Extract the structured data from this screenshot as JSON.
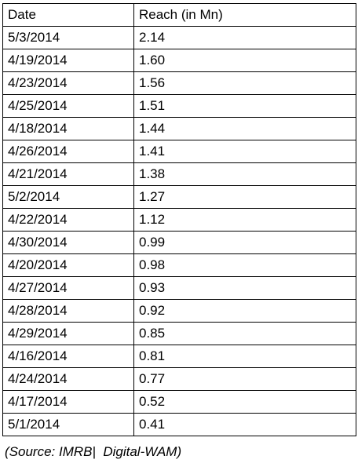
{
  "table": {
    "headers": {
      "date": "Date",
      "reach": "Reach (in Mn)"
    },
    "rows": [
      {
        "date": "5/3/2014",
        "reach": "2.14"
      },
      {
        "date": "4/19/2014",
        "reach": "1.60"
      },
      {
        "date": "4/23/2014",
        "reach": "1.56"
      },
      {
        "date": "4/25/2014",
        "reach": "1.51"
      },
      {
        "date": "4/18/2014",
        "reach": "1.44"
      },
      {
        "date": "4/26/2014",
        "reach": "1.41"
      },
      {
        "date": "4/21/2014",
        "reach": "1.38"
      },
      {
        "date": "5/2/2014",
        "reach": "1.27"
      },
      {
        "date": "4/22/2014",
        "reach": "1.12"
      },
      {
        "date": "4/30/2014",
        "reach": "0.99"
      },
      {
        "date": "4/20/2014",
        "reach": "0.98"
      },
      {
        "date": "4/27/2014",
        "reach": "0.93"
      },
      {
        "date": "4/28/2014",
        "reach": "0.92"
      },
      {
        "date": "4/29/2014",
        "reach": "0.85"
      },
      {
        "date": "4/16/2014",
        "reach": "0.81"
      },
      {
        "date": "4/24/2014",
        "reach": "0.77"
      },
      {
        "date": "4/17/2014",
        "reach": "0.52"
      },
      {
        "date": "5/1/2014",
        "reach": "0.41"
      }
    ]
  },
  "source_note": "(Source: IMRB|  Digital-WAM)"
}
